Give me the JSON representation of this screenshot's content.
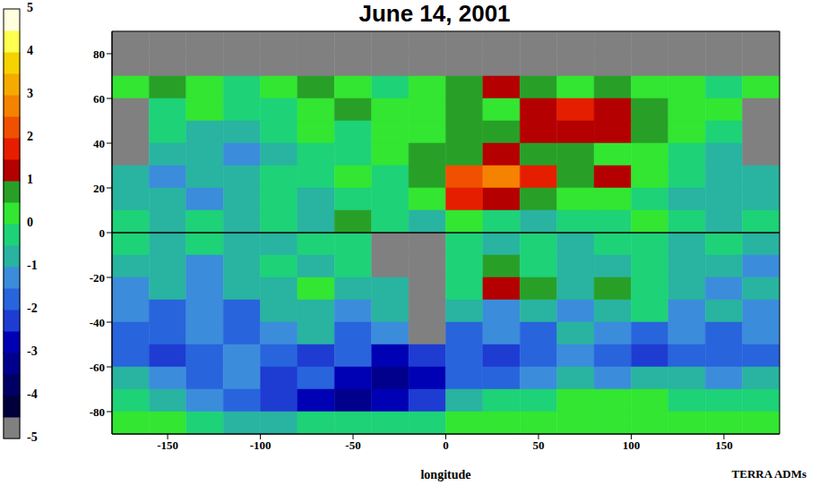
{
  "chart_data": {
    "type": "heatmap",
    "title": "June 14, 2001",
    "x_label": "longitude",
    "annotation": "TERRA ADMs",
    "xlim": [
      -180,
      180
    ],
    "xticks": [
      -150,
      -100,
      -50,
      0,
      50,
      100,
      150
    ],
    "ylim": [
      -90,
      90
    ],
    "yticks": [
      80,
      60,
      40,
      20,
      0,
      -20,
      -40,
      -60,
      -80
    ],
    "reference_line_y": 0,
    "x_edges": [
      -180,
      -160,
      -140,
      -120,
      -100,
      -80,
      -60,
      -40,
      -20,
      0,
      20,
      40,
      60,
      80,
      100,
      120,
      140,
      160,
      180
    ],
    "y_edges": [
      90,
      80,
      70,
      60,
      50,
      40,
      30,
      20,
      10,
      0,
      -10,
      -20,
      -30,
      -40,
      -50,
      -60,
      -70,
      -80,
      -90
    ],
    "values": [
      [
        -5,
        -5,
        -5,
        -5,
        -5,
        -5,
        -5,
        -5,
        -5,
        -5,
        -5,
        -5,
        -5,
        -5,
        -5,
        -5,
        -5,
        -5
      ],
      [
        -5,
        -5,
        -5,
        -5,
        -5,
        -5,
        -5,
        -5,
        -5,
        -5,
        -5,
        -5,
        -5,
        -5,
        -5,
        -5,
        -5,
        -5
      ],
      [
        0,
        0.5,
        0,
        -0.5,
        0,
        0.5,
        0,
        -0.5,
        0,
        0.5,
        1,
        0.5,
        0,
        0.5,
        0,
        0,
        -0.5,
        0
      ],
      [
        -5,
        -0.5,
        0,
        -0.5,
        -0.5,
        0,
        0.5,
        0,
        0,
        0.5,
        0,
        1,
        1.5,
        1,
        0.5,
        0,
        0,
        -5
      ],
      [
        -5,
        -0.5,
        -1,
        -1,
        -0.5,
        0,
        -0.5,
        0,
        0,
        0.5,
        0.5,
        1,
        1,
        1,
        0.5,
        0,
        -0.5,
        -5
      ],
      [
        -5,
        -1,
        -1,
        -1.5,
        -1,
        -0.5,
        -0.5,
        0,
        0.5,
        0.5,
        1,
        0.5,
        0.5,
        0,
        0,
        -0.5,
        -1,
        -5
      ],
      [
        -1,
        -1.5,
        -1,
        -1,
        -0.5,
        -0.5,
        0,
        -0.5,
        0.5,
        2,
        2.5,
        1.5,
        0.5,
        1,
        0,
        -0.5,
        -1,
        -1
      ],
      [
        -1,
        -1,
        -1.5,
        -1,
        -0.5,
        -1,
        -0.5,
        -0.5,
        0,
        1.5,
        1,
        0.5,
        0,
        0,
        -0.5,
        -1,
        -1,
        -1
      ],
      [
        -0.5,
        -1,
        -0.5,
        -1,
        -0.5,
        -1,
        0.5,
        -0.5,
        -1,
        0,
        -0.5,
        -1,
        -0.5,
        -0.5,
        0,
        -0.5,
        -1,
        -0.5
      ],
      [
        -0.5,
        -1,
        -0.5,
        -1,
        -1,
        -0.5,
        -0.5,
        -5,
        -5,
        -0.5,
        -1,
        -0.5,
        -1,
        -0.5,
        -0.5,
        -1,
        -0.5,
        -1
      ],
      [
        -1,
        -1,
        -1.5,
        -1,
        -0.5,
        -1,
        -0.5,
        -5,
        -5,
        -0.5,
        0.5,
        -0.5,
        -1,
        -1,
        -0.5,
        -1,
        -1,
        -1.5
      ],
      [
        -1.5,
        -1,
        -1.5,
        -1,
        -1,
        0,
        -1,
        -1,
        -5,
        -0.5,
        1,
        0.5,
        -1,
        0.5,
        -0.5,
        -1,
        -1.5,
        -1
      ],
      [
        -1.5,
        -2,
        -1.5,
        -2,
        -1,
        -1,
        -1.5,
        -1,
        -5,
        -1,
        -1.5,
        -1,
        -1.5,
        -1,
        -0.5,
        -1.5,
        -1,
        -1.5
      ],
      [
        -2,
        -2,
        -1.5,
        -2,
        -1.5,
        -1,
        -2,
        -1.5,
        -5,
        -2,
        -1.5,
        -2,
        -1,
        -1.5,
        -2,
        -1.5,
        -2,
        -1.5
      ],
      [
        -2,
        -2.5,
        -2,
        -1.5,
        -2,
        -2.5,
        -2,
        -3,
        -2.5,
        -2,
        -2.5,
        -2,
        -1.5,
        -2,
        -2.5,
        -2,
        -2,
        -2
      ],
      [
        -1,
        -1.5,
        -2,
        -1.5,
        -2.5,
        -2,
        -3,
        -3.5,
        -3,
        -2,
        -2,
        -1.5,
        -1,
        -1.5,
        -1,
        -1,
        -1.5,
        -1
      ],
      [
        -0.5,
        -1,
        -1.5,
        -2,
        -2.5,
        -3,
        -3.5,
        -3,
        -2.5,
        -1,
        -0.5,
        -0.5,
        0,
        0,
        0,
        -0.5,
        -0.5,
        -0.5
      ],
      [
        0,
        0,
        -0.5,
        -1,
        -1,
        -0.5,
        -0.5,
        -0.5,
        -0.5,
        0,
        0,
        0,
        0,
        0,
        0,
        0,
        0,
        0
      ]
    ],
    "colorbar": {
      "lim": [
        -5,
        5
      ],
      "ticks": [
        5,
        4,
        3,
        2,
        1,
        0,
        -1,
        -2,
        -3,
        -4,
        -5
      ],
      "colors": [
        "#808080",
        "#00003c",
        "#000064",
        "#00008c",
        "#0000b4",
        "#1e3cd2",
        "#2864dc",
        "#3c8cdc",
        "#28b4a0",
        "#1ed278",
        "#32e632",
        "#28a028",
        "#b40000",
        "#e61e00",
        "#f05000",
        "#f58200",
        "#f5aa00",
        "#f5d200",
        "#ffff50",
        "#ffffe0"
      ]
    }
  }
}
